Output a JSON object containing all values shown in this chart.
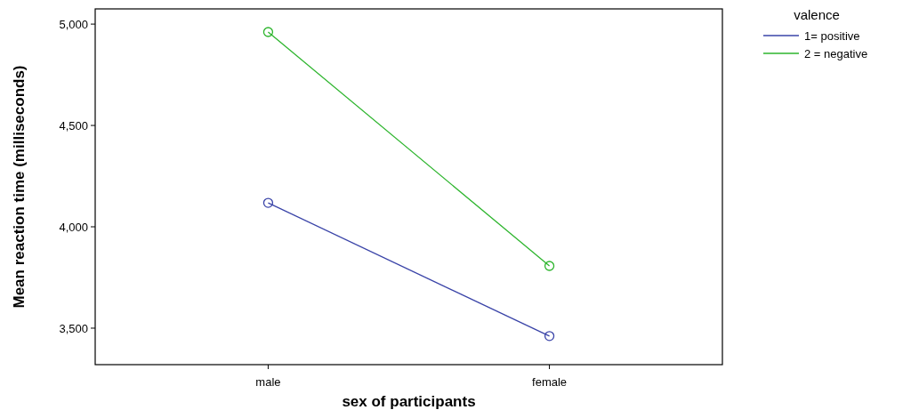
{
  "chart_data": {
    "type": "line",
    "xlabel": "sex of participants",
    "ylabel": "Mean reaction time (milliseconds)",
    "legend_title": "valence",
    "categories": [
      "male",
      "female"
    ],
    "series": [
      {
        "name": "1= positive",
        "color": "#3a44a8",
        "values": [
          4118,
          3461
        ]
      },
      {
        "name": "2 = negative",
        "color": "#2db52d",
        "values": [
          4961,
          3807
        ]
      }
    ],
    "ylim": [
      3320,
      5075
    ],
    "yticks": [
      {
        "value": 3500,
        "label": "3,500"
      },
      {
        "value": 4000,
        "label": "4,000"
      },
      {
        "value": 4500,
        "label": "4,500"
      },
      {
        "value": 5000,
        "label": "5,000"
      }
    ],
    "marker": "circle",
    "legend": "top right",
    "grid": false
  }
}
